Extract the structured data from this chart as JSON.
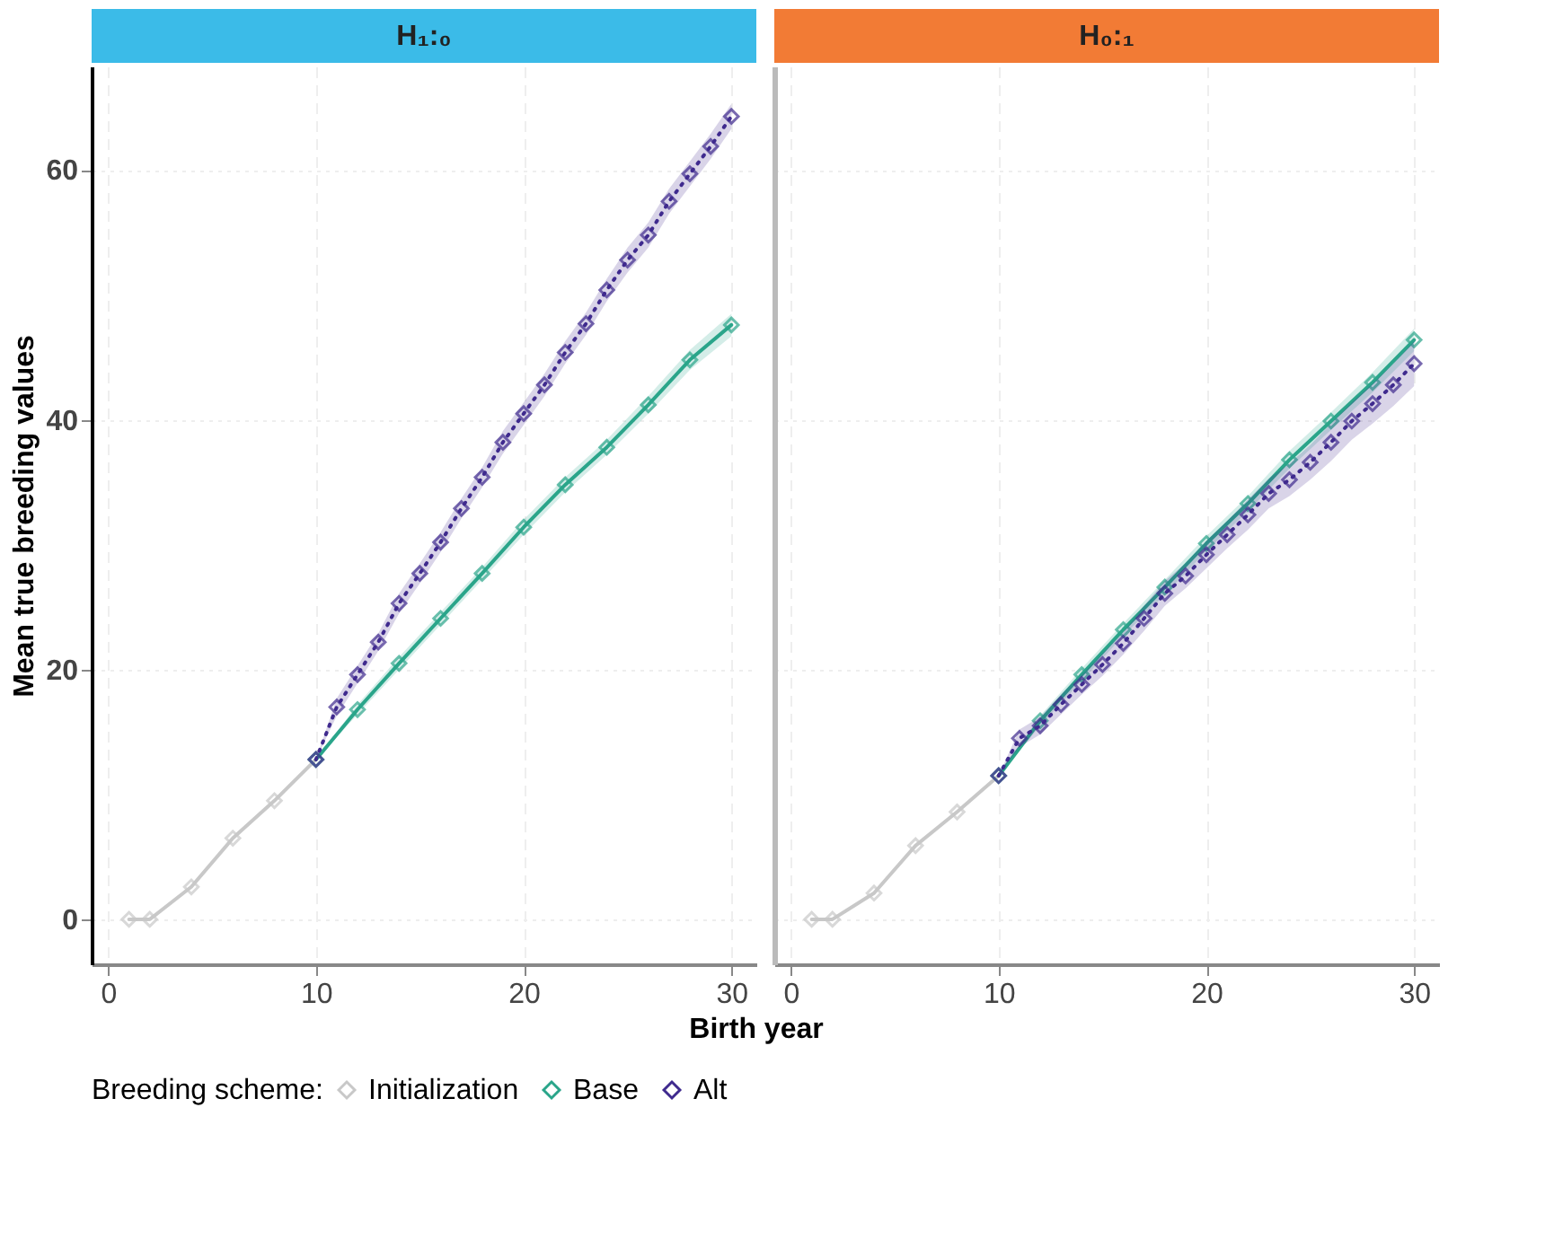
{
  "chart_data": [
    {
      "type": "line",
      "title": "H₁:₀",
      "ylabel": "Mean true breeding values",
      "xlabel": "Birth year",
      "legend_title": "Breeding scheme:",
      "legend": "bottom",
      "marker": "diamond",
      "grid": true,
      "xlim": [
        -0.8,
        31.2
      ],
      "xticks": [
        0,
        10,
        20,
        30
      ],
      "ylim": [
        -3.6,
        68.3
      ],
      "yticks": [
        0,
        20,
        40,
        60
      ],
      "series": [
        {
          "name": "Initialization",
          "color": "#c8c8c8",
          "line_style": "solid",
          "x": [
            1,
            2,
            4,
            6,
            8,
            10
          ],
          "values": [
            0,
            0,
            2.6,
            6.5,
            9.5,
            12.8
          ]
        },
        {
          "name": "Base",
          "color": "#2aa58a",
          "line_style": "solid",
          "x": [
            10,
            12,
            14,
            16,
            18,
            20,
            22,
            24,
            26,
            28,
            30
          ],
          "values": [
            12.8,
            16.8,
            20.5,
            24.1,
            27.7,
            31.4,
            34.8,
            37.8,
            41.2,
            44.8,
            47.6
          ],
          "lower": [
            12.8,
            16.4,
            20.0,
            23.6,
            27.2,
            30.8,
            34.2,
            37.2,
            40.5,
            44.0,
            46.7
          ],
          "upper": [
            12.8,
            17.2,
            21.0,
            24.6,
            28.2,
            32.0,
            35.4,
            38.4,
            41.9,
            45.6,
            48.5
          ]
        },
        {
          "name": "Alt",
          "color": "#3f2a8e",
          "line_style": "dotted",
          "x": [
            10,
            11,
            12,
            13,
            14,
            15,
            16,
            17,
            18,
            19,
            20,
            21,
            22,
            23,
            24,
            25,
            26,
            27,
            28,
            29,
            30
          ],
          "values": [
            12.8,
            17.0,
            19.6,
            22.2,
            25.3,
            27.7,
            30.2,
            32.9,
            35.4,
            38.2,
            40.5,
            42.8,
            45.4,
            47.7,
            50.4,
            52.8,
            54.8,
            57.5,
            59.7,
            61.9,
            64.3
          ],
          "lower": [
            12.8,
            16.3,
            18.9,
            21.5,
            24.5,
            26.9,
            29.4,
            32.1,
            34.6,
            37.3,
            39.6,
            41.9,
            44.5,
            46.8,
            49.5,
            51.8,
            53.8,
            56.5,
            58.7,
            60.9,
            63.3
          ],
          "upper": [
            12.8,
            17.7,
            20.3,
            22.9,
            26.1,
            28.5,
            31.0,
            33.7,
            36.2,
            39.1,
            41.4,
            43.7,
            46.3,
            48.6,
            51.3,
            53.8,
            55.8,
            58.5,
            60.7,
            62.9,
            65.3
          ]
        }
      ]
    },
    {
      "type": "line",
      "title": "H₀:₁",
      "marker": "diamond",
      "grid": true,
      "tick_labels": "x",
      "xlim": [
        -0.8,
        31.2
      ],
      "xticks": [
        0,
        10,
        20,
        30
      ],
      "ylim": [
        -3.6,
        68.3
      ],
      "yticks": [
        0,
        20,
        40,
        60
      ],
      "series": [
        {
          "name": "Initialization",
          "color": "#c8c8c8",
          "line_style": "solid",
          "x": [
            1,
            2,
            4,
            6,
            8,
            10
          ],
          "values": [
            0,
            0,
            2.1,
            5.9,
            8.6,
            11.5
          ]
        },
        {
          "name": "Base",
          "color": "#2aa58a",
          "line_style": "solid",
          "x": [
            10,
            12,
            14,
            16,
            18,
            20,
            22,
            24,
            26,
            28,
            30
          ],
          "values": [
            11.5,
            15.9,
            19.6,
            23.2,
            26.6,
            30.1,
            33.3,
            36.8,
            39.9,
            43.0,
            46.4
          ],
          "lower": [
            11.5,
            15.5,
            19.1,
            22.7,
            26.0,
            29.5,
            32.7,
            36.1,
            39.2,
            42.2,
            45.5
          ],
          "upper": [
            11.5,
            16.3,
            20.1,
            23.7,
            27.2,
            30.7,
            33.9,
            37.5,
            40.6,
            43.8,
            47.3
          ]
        },
        {
          "name": "Alt",
          "color": "#3f2a8e",
          "line_style": "dotted",
          "x": [
            10,
            11,
            12,
            13,
            14,
            15,
            16,
            17,
            18,
            19,
            20,
            21,
            22,
            23,
            24,
            25,
            26,
            27,
            28,
            29,
            30
          ],
          "values": [
            11.5,
            14.5,
            15.5,
            17.2,
            18.8,
            20.4,
            22.1,
            24.1,
            26.1,
            27.5,
            29.2,
            30.8,
            32.4,
            34.1,
            35.2,
            36.6,
            38.2,
            39.9,
            41.3,
            42.8,
            44.5
          ],
          "lower": [
            11.5,
            13.8,
            14.8,
            16.4,
            18.0,
            19.5,
            21.2,
            23.1,
            25.1,
            26.5,
            28.1,
            29.7,
            31.2,
            32.9,
            33.9,
            35.2,
            36.7,
            38.4,
            39.7,
            41.1,
            42.7
          ],
          "upper": [
            11.5,
            15.2,
            16.2,
            18.0,
            19.6,
            21.3,
            23.0,
            25.1,
            27.1,
            28.5,
            30.3,
            31.9,
            33.6,
            35.3,
            36.5,
            38.0,
            39.7,
            41.4,
            42.9,
            44.5,
            46.3
          ]
        }
      ]
    }
  ]
}
